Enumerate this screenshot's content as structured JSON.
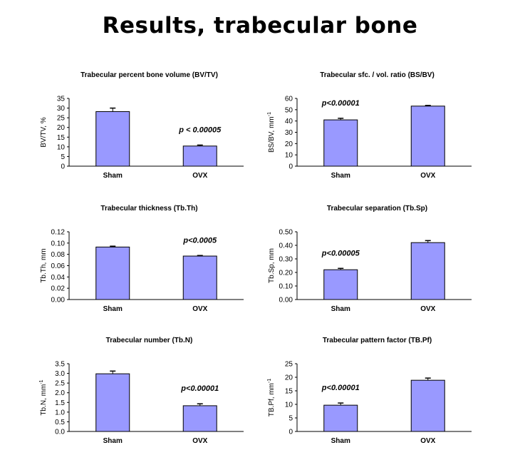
{
  "title": "Results, trabecular bone",
  "bar_color": "#9999ff",
  "chart_data": [
    {
      "type": "bar",
      "title": "Trabecular percent bone volume (BV/TV)",
      "ylabel": "BV/TV, %",
      "ylabel_sup": "",
      "categories": [
        "Sham",
        "OVX"
      ],
      "values": [
        28.2,
        10.4
      ],
      "errors": [
        1.8,
        0.5
      ],
      "ylim": [
        0,
        35
      ],
      "yticks": [
        "0",
        "5",
        "10",
        "15",
        "20",
        "25",
        "30",
        "35"
      ],
      "annotation": "p < 0.00005",
      "annotation_index": 1
    },
    {
      "type": "bar",
      "title": "Trabecular sfc. / vol. ratio (BS/BV)",
      "ylabel": "BS/BV, mm",
      "ylabel_sup": "-1",
      "categories": [
        "Sham",
        "OVX"
      ],
      "values": [
        41,
        53.2
      ],
      "errors": [
        1.4,
        0.6
      ],
      "ylim": [
        0,
        60
      ],
      "yticks": [
        "0",
        "10",
        "20",
        "30",
        "40",
        "50",
        "60"
      ],
      "annotation": "p<0.00001",
      "annotation_index": 0
    },
    {
      "type": "bar",
      "title": "Trabecular thickness (Tb.Th)",
      "ylabel": "Tb.Th, mm",
      "ylabel_sup": "",
      "categories": [
        "Sham",
        "OVX"
      ],
      "values": [
        0.093,
        0.077
      ],
      "errors": [
        0.0015,
        0.001
      ],
      "ylim": [
        0,
        0.12
      ],
      "yticks": [
        "0.00",
        "0.02",
        "0.04",
        "0.06",
        "0.08",
        "0.10",
        "0.12"
      ],
      "annotation": "p<0.0005",
      "annotation_index": 1
    },
    {
      "type": "bar",
      "title": "Trabecular separation (Tb.Sp)",
      "ylabel": "Tb.Sp, mm",
      "ylabel_sup": "",
      "categories": [
        "Sham",
        "OVX"
      ],
      "values": [
        0.22,
        0.42
      ],
      "errors": [
        0.01,
        0.015
      ],
      "ylim": [
        0,
        0.5
      ],
      "yticks": [
        "0.00",
        "0.10",
        "0.20",
        "0.30",
        "0.40",
        "0.50"
      ],
      "annotation": "p<0.00005",
      "annotation_index": 0
    },
    {
      "type": "bar",
      "title": "Trabecular number (Tb.N)",
      "ylabel": "Tb.N, mm",
      "ylabel_sup": "-1",
      "categories": [
        "Sham",
        "OVX"
      ],
      "values": [
        2.98,
        1.33
      ],
      "errors": [
        0.14,
        0.1
      ],
      "ylim": [
        0,
        3.5
      ],
      "yticks": [
        "0.0",
        "0.5",
        "1.0",
        "1.5",
        "2.0",
        "2.5",
        "3.0",
        "3.5"
      ],
      "annotation": "p<0.00001",
      "annotation_index": 1
    },
    {
      "type": "bar",
      "title": "Trabecular pattern factor (TB.Pf)",
      "ylabel": "TB.Pf, mm",
      "ylabel_sup": "-1",
      "categories": [
        "Sham",
        "OVX"
      ],
      "values": [
        9.7,
        18.9
      ],
      "errors": [
        0.8,
        0.8
      ],
      "ylim": [
        0,
        25
      ],
      "yticks": [
        "0",
        "5",
        "10",
        "15",
        "20",
        "25"
      ],
      "annotation": "p<0.00001",
      "annotation_index": 0
    }
  ]
}
